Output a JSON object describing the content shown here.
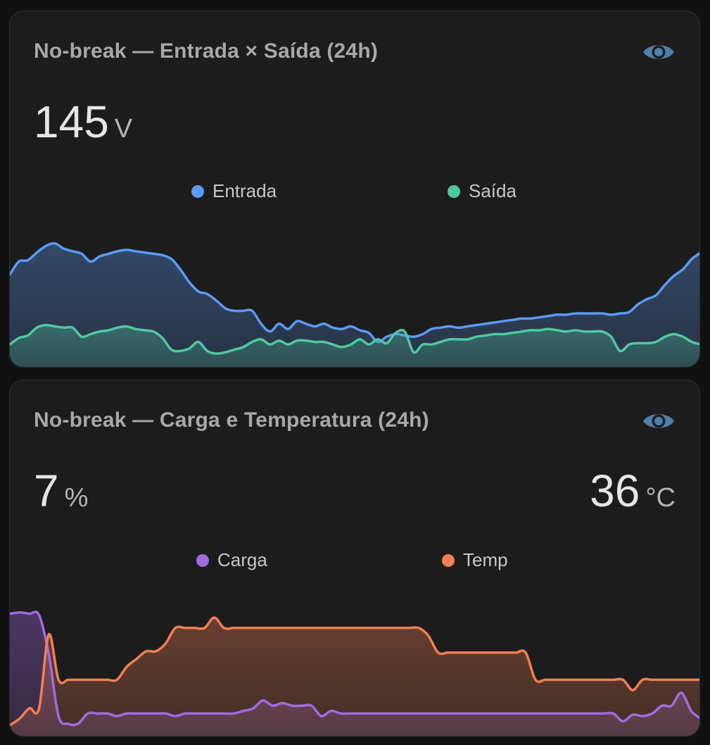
{
  "colors": {
    "entrada": "#5b9bf5",
    "saida": "#4fc9a0",
    "carga": "#a36be2",
    "temp": "#f27f55",
    "icon": "#4f7faa"
  },
  "card1": {
    "title": "No-break — Entrada × Saída (24h)",
    "icon": "eye-icon",
    "value": "145",
    "unit": "V",
    "legend": [
      {
        "label": "Entrada",
        "color": "#5b9bf5"
      },
      {
        "label": "Saída",
        "color": "#4fc9a0"
      }
    ]
  },
  "card2": {
    "title": "No-break — Carga e Temperatura (24h)",
    "icon": "eye-icon",
    "left_value": "7",
    "left_unit": "%",
    "right_value": "36",
    "right_unit": "°C",
    "legend": [
      {
        "label": "Carga",
        "color": "#a36be2"
      },
      {
        "label": "Temp",
        "color": "#f27f55"
      }
    ]
  },
  "chart_data": [
    {
      "type": "area",
      "ylim": [
        0,
        100
      ],
      "series": [
        {
          "name": "Entrada",
          "values": [
            68,
            78,
            79,
            85,
            90,
            92,
            88,
            86,
            84,
            78,
            82,
            84,
            86,
            87,
            86,
            85,
            84,
            83,
            80,
            72,
            62,
            55,
            53,
            48,
            42,
            40,
            40,
            40,
            30,
            24,
            30,
            26,
            32,
            30,
            28,
            30,
            27,
            26,
            28,
            25,
            23,
            16,
            20,
            22,
            21,
            20,
            22,
            26,
            27,
            28,
            27,
            28,
            29,
            30,
            31,
            32,
            33,
            34,
            34,
            35,
            36,
            37,
            37,
            38,
            38,
            38,
            38,
            37,
            38,
            39,
            45,
            49,
            52,
            60,
            67,
            72,
            80,
            85
          ]
        },
        {
          "name": "Saída",
          "values": [
            14,
            19,
            21,
            27,
            29,
            28,
            27,
            27,
            20,
            22,
            24,
            25,
            27,
            28,
            26,
            25,
            24,
            19,
            10,
            9,
            11,
            16,
            9,
            7,
            8,
            10,
            12,
            16,
            18,
            14,
            17,
            14,
            17,
            17,
            16,
            16,
            14,
            12,
            14,
            18,
            14,
            18,
            15,
            23,
            24,
            8,
            14,
            14,
            16,
            18,
            18,
            18,
            20,
            21,
            22,
            22,
            23,
            24,
            25,
            25,
            26,
            25,
            24,
            25,
            24,
            24,
            24,
            20,
            9,
            14,
            15,
            15,
            16,
            20,
            22,
            20,
            16,
            14
          ]
        }
      ]
    },
    {
      "type": "area",
      "ylim": [
        0,
        100
      ],
      "series": [
        {
          "name": "Carga",
          "values": [
            91,
            92,
            91,
            90,
            60,
            12,
            6,
            6,
            14,
            14,
            14,
            12,
            14,
            14,
            14,
            14,
            14,
            12,
            14,
            14,
            14,
            14,
            14,
            14,
            16,
            18,
            24,
            20,
            22,
            20,
            20,
            20,
            12,
            16,
            14,
            14,
            14,
            14,
            14,
            14,
            14,
            14,
            14,
            14,
            14,
            14,
            14,
            14,
            14,
            14,
            14,
            14,
            14,
            14,
            14,
            14,
            14,
            14,
            14,
            14,
            14,
            14,
            14,
            8,
            13,
            12,
            14,
            20,
            20,
            30,
            16,
            10
          ]
        },
        {
          "name": "Temp",
          "values": [
            5,
            10,
            18,
            18,
            75,
            40,
            40,
            40,
            40,
            40,
            40,
            40,
            50,
            56,
            62,
            62,
            68,
            80,
            80,
            80,
            80,
            88,
            80,
            80,
            80,
            80,
            80,
            80,
            80,
            80,
            80,
            80,
            80,
            80,
            80,
            80,
            80,
            80,
            80,
            80,
            80,
            80,
            80,
            74,
            61,
            61,
            61,
            61,
            61,
            61,
            61,
            61,
            61,
            61,
            40,
            40,
            40,
            40,
            40,
            40,
            40,
            40,
            40,
            40,
            32,
            40,
            40,
            40,
            40,
            40,
            40,
            40
          ]
        }
      ]
    }
  ]
}
